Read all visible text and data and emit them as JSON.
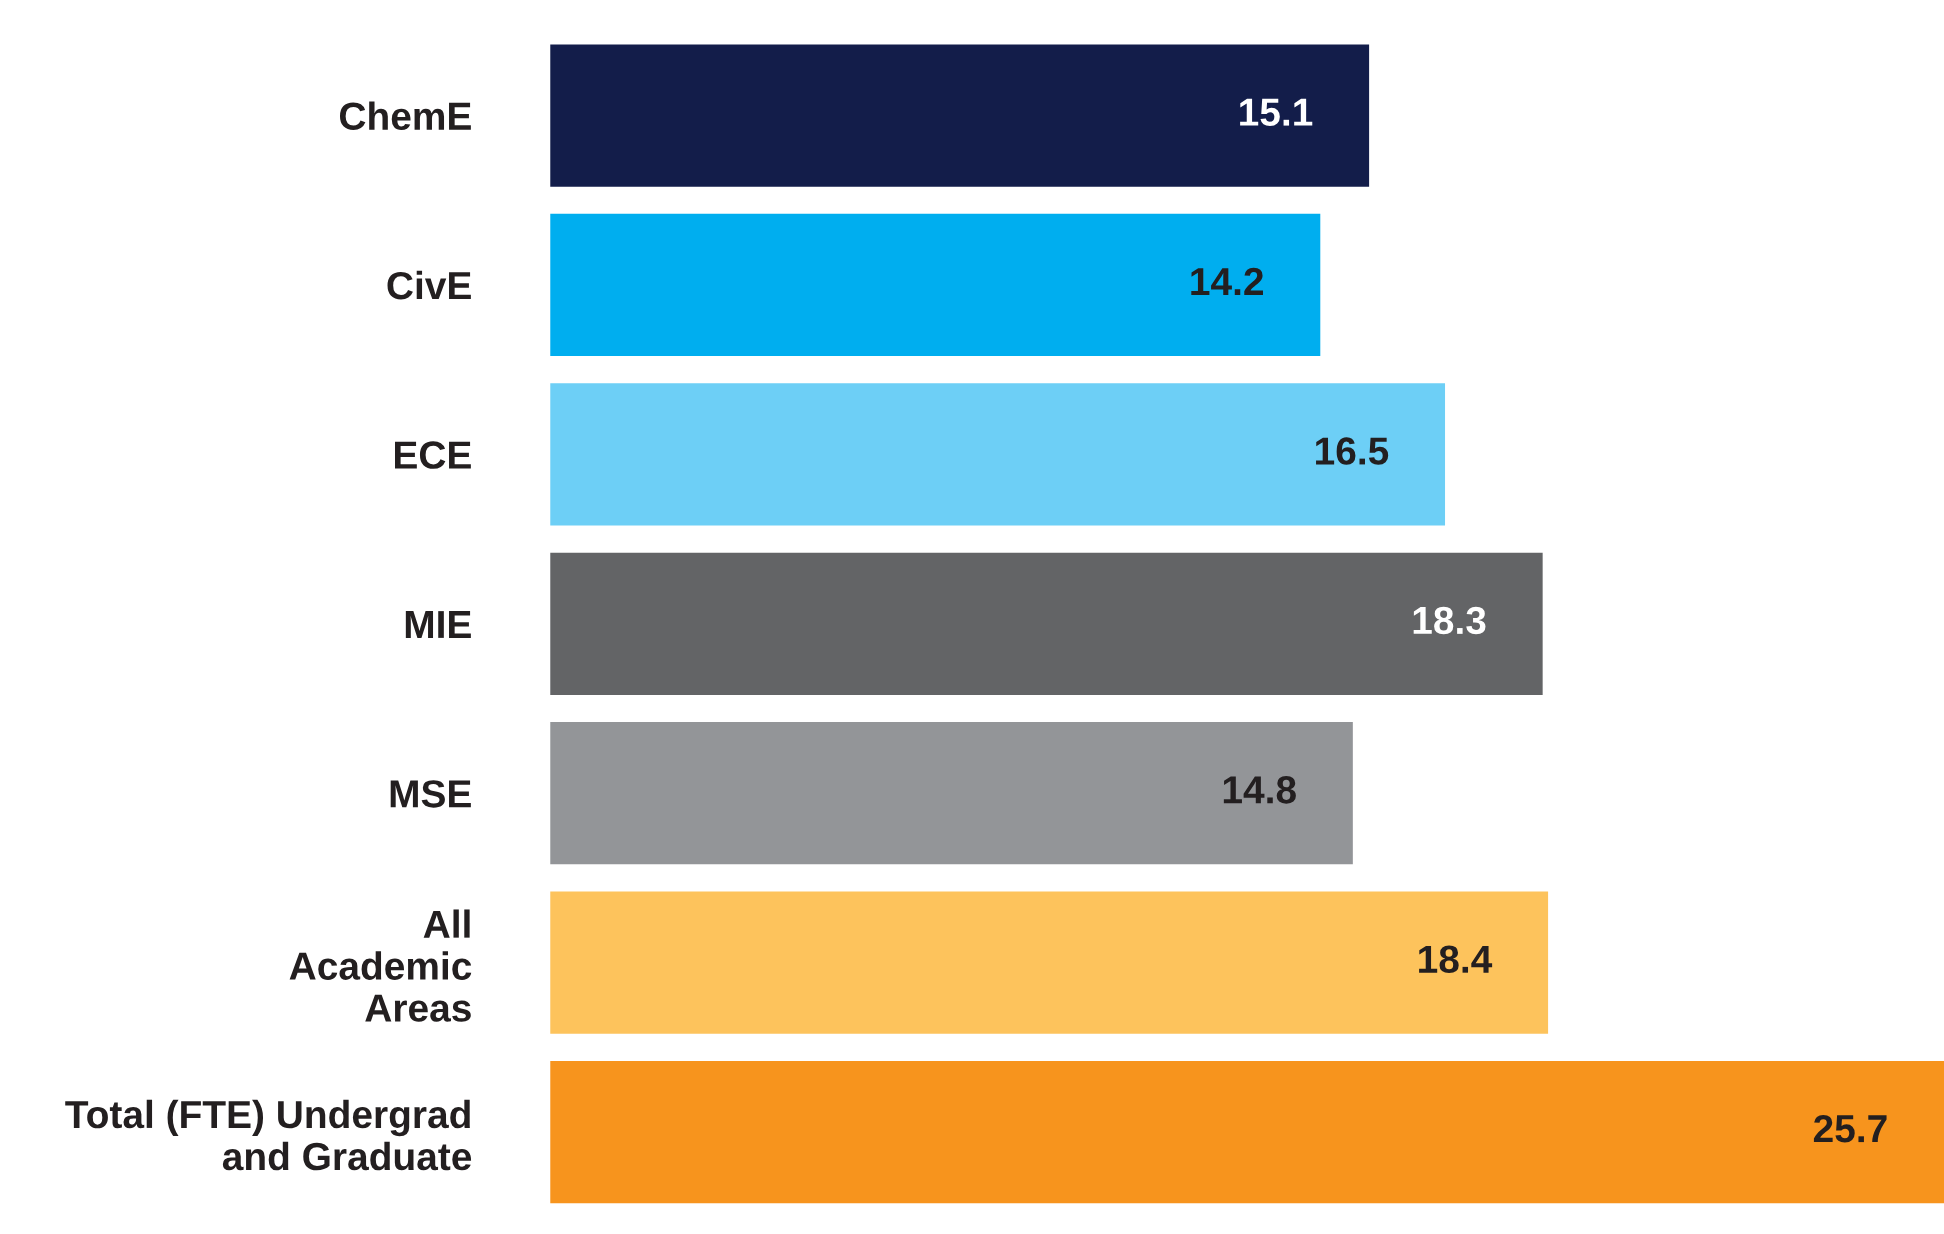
{
  "chart_data": {
    "type": "bar",
    "orientation": "horizontal",
    "categories": [
      "ChemE",
      "CivE",
      "ECE",
      "MIE",
      "MSE",
      "All\nAcademic\nAreas",
      "Total (FTE) Undergrad\nand Graduate"
    ],
    "values": [
      15.1,
      14.2,
      16.5,
      18.3,
      14.8,
      18.4,
      25.7
    ],
    "colors": [
      "#131d4a",
      "#00aeef",
      "#6dcff6",
      "#636466",
      "#939598",
      "#fdc35c",
      "#f7941d"
    ],
    "data_labels": true,
    "grid": false,
    "legend": false
  }
}
